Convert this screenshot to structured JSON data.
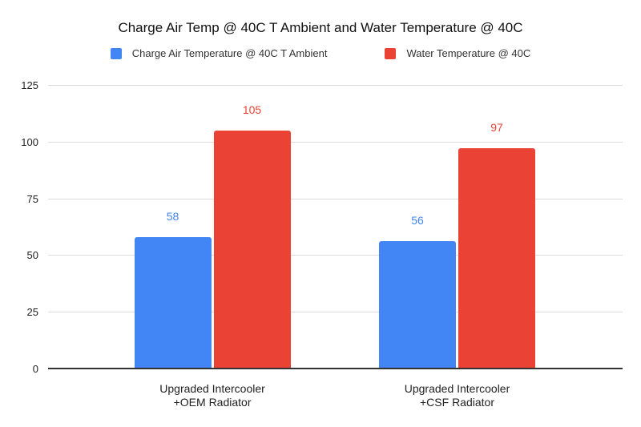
{
  "title": "Charge Air Temp @ 40C T Ambient and Water Temperature @ 40C",
  "legend": [
    {
      "label": "Charge Air Temperature @ 40C T Ambient",
      "color": "#4285F4"
    },
    {
      "label": "Water Temperature @ 40C",
      "color": "#EA4335"
    }
  ],
  "chart_data": {
    "type": "bar",
    "title": "Charge Air Temp @ 40C T Ambient and Water Temperature @ 40C",
    "categories": [
      "Upgraded Intercooler\n+OEM Radiator",
      "Upgraded Intercooler\n+CSF Radiator"
    ],
    "series": [
      {
        "name": "Charge Air Temperature @ 40C T Ambient",
        "color": "#4285F4",
        "values": [
          58,
          56
        ]
      },
      {
        "name": "Water Temperature @ 40C",
        "color": "#EA4335",
        "values": [
          105,
          97
        ]
      }
    ],
    "xlabel": "",
    "ylabel": "",
    "ylim": [
      0,
      125
    ],
    "yticks": [
      0,
      25,
      50,
      75,
      100,
      125
    ],
    "grid": true,
    "legend_position": "top",
    "data_labels": true,
    "background": "#ffffff",
    "gridline_color": "#dadada",
    "axis_line_color": "#333333"
  }
}
